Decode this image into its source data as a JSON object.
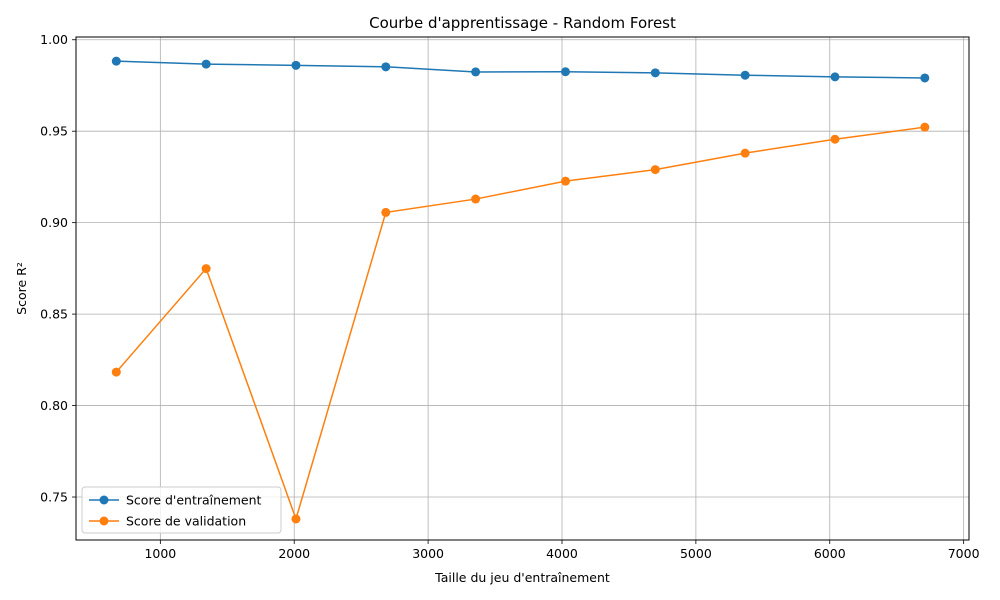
{
  "chart_data": {
    "type": "line",
    "title": "Courbe d'apprentissage - Random Forest",
    "xlabel": "Taille du jeu d'entraînement",
    "ylabel": "Score R²",
    "xlim": [
      370,
      7040
    ],
    "ylim": [
      0.7265,
      1.0015
    ],
    "xticks": [
      1000,
      2000,
      3000,
      4000,
      5000,
      6000,
      7000
    ],
    "yticks": [
      0.75,
      0.8,
      0.85,
      0.9,
      0.95,
      1.0
    ],
    "xtick_labels": [
      "1000",
      "2000",
      "3000",
      "4000",
      "5000",
      "6000",
      "7000"
    ],
    "ytick_labels": [
      "0.75",
      "0.80",
      "0.85",
      "0.90",
      "0.95",
      "1.00"
    ],
    "grid": true,
    "legend_position": "lower-left",
    "x": [
      671,
      1342,
      2013,
      2684,
      3355,
      4026,
      4697,
      5368,
      6039,
      6710
    ],
    "series": [
      {
        "name": "Score d'entraînement",
        "color": "#1f77b4",
        "marker": "circle",
        "values": [
          0.9883,
          0.9867,
          0.986,
          0.9852,
          0.9824,
          0.9825,
          0.9819,
          0.9806,
          0.9797,
          0.9791
        ]
      },
      {
        "name": "Score de validation",
        "color": "#ff7f0e",
        "marker": "circle",
        "values": [
          0.8183,
          0.8749,
          0.738,
          0.9056,
          0.9129,
          0.9227,
          0.929,
          0.938,
          0.9456,
          0.9522
        ]
      }
    ]
  }
}
